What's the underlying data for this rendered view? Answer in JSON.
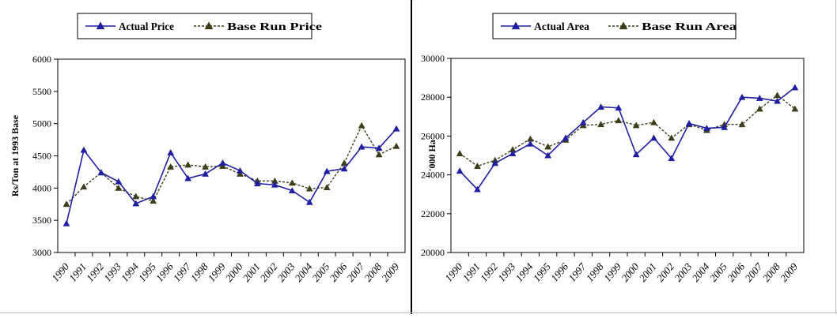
{
  "chart_data": [
    {
      "type": "line",
      "title": "",
      "xlabel": "",
      "ylabel": "Rs/Ton at 1993 Base",
      "x": [
        "1990",
        "1991",
        "1992",
        "1993",
        "1994",
        "1995",
        "1996",
        "1997",
        "1998",
        "1999",
        "2000",
        "2001",
        "2002",
        "2003",
        "2004",
        "2005",
        "2006",
        "2007",
        "2008",
        "2009"
      ],
      "ylim": [
        3000,
        6000
      ],
      "yticks": [
        "3000",
        "3500",
        "4000",
        "4500",
        "5000",
        "5500",
        "6000"
      ],
      "legend_position": "top-center",
      "grid": false,
      "series": [
        {
          "name": "Actual Price",
          "color": "#1f1fa3",
          "line_style": "solid",
          "marker": "triangle",
          "values": [
            3450,
            4590,
            4240,
            4100,
            3760,
            3870,
            4550,
            4150,
            4220,
            4390,
            4270,
            4070,
            4050,
            3960,
            3780,
            4260,
            4300,
            4640,
            4620,
            4920
          ]
        },
        {
          "name": "Base Run Price",
          "color": "#3d3d1a",
          "line_style": "dashed",
          "marker": "triangle",
          "values": [
            3750,
            4020,
            4240,
            4000,
            3870,
            3800,
            4330,
            4360,
            4330,
            4340,
            4220,
            4110,
            4110,
            4080,
            3990,
            4010,
            4390,
            4970,
            4520,
            4650
          ]
        }
      ]
    },
    {
      "type": "line",
      "title": "",
      "xlabel": "",
      "ylabel": "'000 Ha",
      "x": [
        "1990",
        "1991",
        "1992",
        "1993",
        "1994",
        "1995",
        "1996",
        "1997",
        "1998",
        "1999",
        "2000",
        "2001",
        "2002",
        "2003",
        "2004",
        "2005",
        "2006",
        "2007",
        "2008",
        "2009"
      ],
      "ylim": [
        20000,
        30000
      ],
      "yticks": [
        "20000",
        "22000",
        "24000",
        "26000",
        "28000",
        "30000"
      ],
      "legend_position": "top-center",
      "grid": false,
      "series": [
        {
          "name": "Actual Area",
          "color": "#1f1fa3",
          "line_style": "solid",
          "marker": "triangle",
          "values": [
            24200,
            23250,
            24600,
            25100,
            25600,
            25000,
            25900,
            26700,
            27500,
            27450,
            25050,
            25900,
            24850,
            26650,
            26400,
            26450,
            28000,
            27950,
            27800,
            28500
          ]
        },
        {
          "name": "Base Run Area",
          "color": "#3d3d1a",
          "line_style": "dashed",
          "marker": "triangle",
          "values": [
            25100,
            24450,
            24750,
            25300,
            25850,
            25450,
            25800,
            26550,
            26600,
            26800,
            26550,
            26700,
            25900,
            26600,
            26300,
            26600,
            26600,
            27400,
            28100,
            27400
          ]
        }
      ]
    }
  ]
}
